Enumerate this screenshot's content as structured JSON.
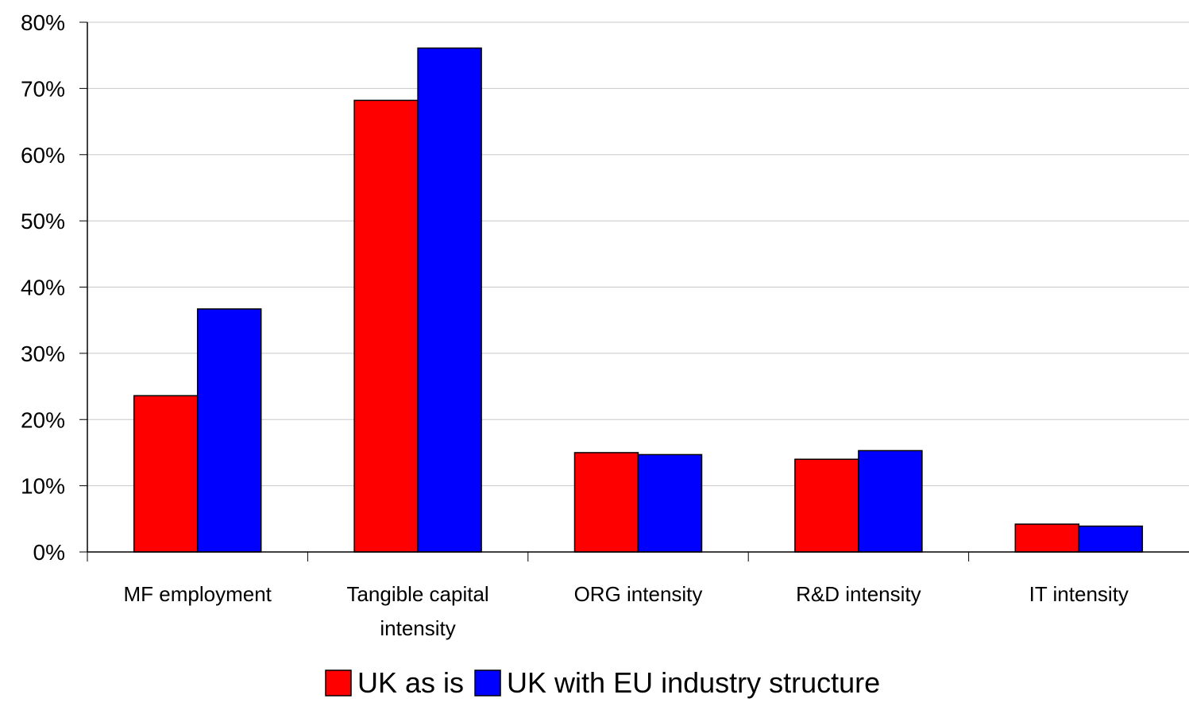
{
  "chart_data": {
    "type": "bar",
    "title": "",
    "xlabel": "",
    "ylabel": "",
    "categories": [
      [
        "MF employment"
      ],
      [
        "Tangible capital",
        "intensity"
      ],
      [
        "ORG intensity"
      ],
      [
        "R&D intensity"
      ],
      [
        "IT intensity"
      ]
    ],
    "series": [
      {
        "name": "UK as is",
        "color": "#ff0000",
        "values": [
          23.6,
          68.2,
          15.0,
          14.0,
          4.2
        ]
      },
      {
        "name": "UK with EU industry structure",
        "color": "#0000ff",
        "values": [
          36.7,
          76.1,
          14.7,
          15.3,
          3.9
        ]
      }
    ],
    "ylim": [
      0,
      80
    ],
    "yticks": [
      0,
      10,
      20,
      30,
      40,
      50,
      60,
      70,
      80
    ],
    "ytick_labels": [
      "0%",
      "10%",
      "20%",
      "30%",
      "40%",
      "50%",
      "60%",
      "70%",
      "80%"
    ],
    "grid": true,
    "legend_position": "bottom"
  }
}
